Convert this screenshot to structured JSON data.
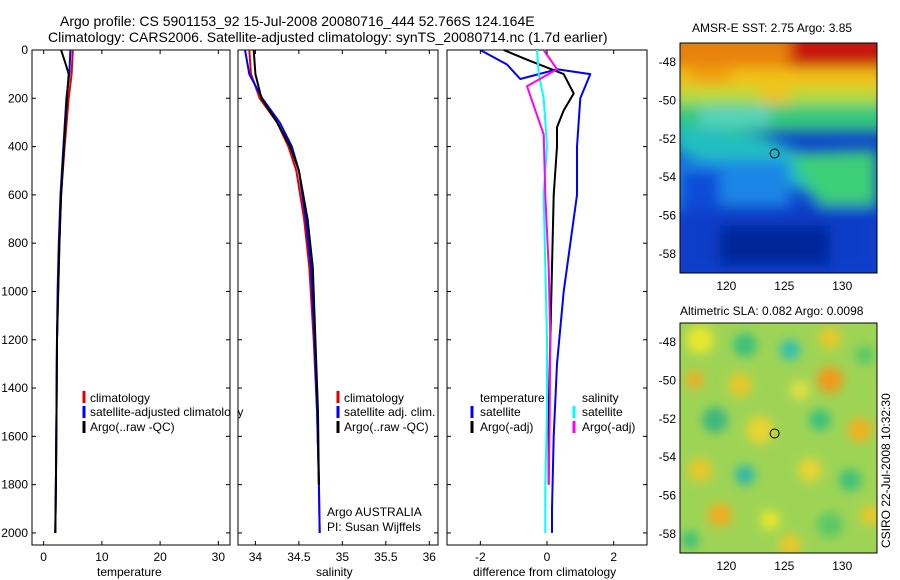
{
  "header": {
    "line1": "Argo profile: CS 5901153_92 15-Jul-2008 20080716_444 52.766S 124.164E",
    "line2": "Climatology: CARS2006. Satellite-adjusted climatology: synTS_20080714.nc (1.7d earlier)"
  },
  "side_label": "CSIRO 22-Jul-2008 10:32:30",
  "colors": {
    "red": "#e00000",
    "blue": "#0000ff",
    "black": "#000000",
    "cyan": "#00ffff",
    "magenta": "#ff00ff"
  },
  "chart_data": [
    {
      "type": "line",
      "id": "temperature",
      "xlabel": "temperature",
      "xlim": [
        -2,
        32
      ],
      "ylim": [
        0,
        2050
      ],
      "y_reversed": true,
      "xticks": [
        0,
        10,
        20,
        30
      ],
      "yticks": [
        0,
        200,
        400,
        600,
        800,
        1000,
        1200,
        1400,
        1600,
        1800,
        2000
      ],
      "legend": [
        "climatology",
        "satellite-adjusted climatology",
        "Argo(..raw -QC)"
      ],
      "series": [
        {
          "name": "climatology",
          "color": "red",
          "x": [
            5.0,
            4.8,
            4.3,
            3.6,
            3.0,
            2.7,
            2.5,
            2.3,
            2.2,
            2.1,
            2.0
          ],
          "y": [
            0,
            100,
            200,
            400,
            600,
            800,
            1000,
            1200,
            1500,
            1800,
            2000
          ]
        },
        {
          "name": "satellite-adjusted climatology",
          "color": "blue",
          "x": [
            4.6,
            4.4,
            3.9,
            3.4,
            2.9,
            2.6,
            2.4,
            2.3,
            2.2,
            2.1,
            2.0
          ],
          "y": [
            0,
            100,
            200,
            400,
            600,
            800,
            1000,
            1200,
            1500,
            1800,
            2000
          ]
        },
        {
          "name": "Argo(..raw -QC)",
          "color": "black",
          "x": [
            3.0,
            3.8,
            4.3,
            4.0,
            3.5,
            3.0,
            2.7,
            2.5,
            2.3,
            2.2,
            2.1,
            2.0
          ],
          "y": [
            0,
            60,
            100,
            200,
            400,
            600,
            800,
            1000,
            1200,
            1500,
            1800,
            2000
          ]
        }
      ]
    },
    {
      "type": "line",
      "id": "salinity",
      "xlabel": "salinity",
      "xlim": [
        33.8,
        36.1
      ],
      "ylim": [
        0,
        2050
      ],
      "y_reversed": true,
      "xticks": [
        34,
        34.5,
        35,
        35.5,
        36
      ],
      "xticklabels": [
        "34",
        "34.5",
        "35",
        "35.5",
        "36"
      ],
      "legend": [
        "climatology",
        "satellite adj. clim.",
        "Argo(..raw -QC)"
      ],
      "annotations": [
        "Argo AUSTRALIA",
        "PI: Susan Wijffels"
      ],
      "series": [
        {
          "name": "climatology",
          "color": "red",
          "x": [
            33.93,
            33.95,
            34.05,
            34.25,
            34.38,
            34.47,
            34.56,
            34.62,
            34.67,
            34.71,
            34.73,
            34.74
          ],
          "y": [
            0,
            100,
            200,
            300,
            400,
            500,
            700,
            900,
            1200,
            1500,
            1800,
            2000
          ]
        },
        {
          "name": "satellite adj. clim.",
          "color": "blue",
          "x": [
            33.88,
            33.93,
            34.08,
            34.28,
            34.42,
            34.5,
            34.58,
            34.64,
            34.68,
            34.71,
            34.73,
            34.74
          ],
          "y": [
            0,
            100,
            200,
            300,
            400,
            500,
            700,
            900,
            1200,
            1500,
            1800,
            2000
          ]
        },
        {
          "name": "Argo(..raw -QC)",
          "color": "black",
          "x": [
            33.98,
            34.0,
            34.07,
            34.25,
            34.4,
            34.5,
            34.6,
            34.66,
            34.69,
            34.72,
            34.73
          ],
          "y": [
            0,
            100,
            200,
            300,
            400,
            500,
            700,
            900,
            1200,
            1500,
            1800
          ]
        }
      ]
    },
    {
      "type": "line",
      "id": "difference",
      "xlabel": "difference from climatology",
      "xlim": [
        -3,
        3
      ],
      "ylim": [
        0,
        2050
      ],
      "y_reversed": true,
      "xticks": [
        -2,
        0,
        2
      ],
      "legend_left": [
        "temperature",
        "satellite",
        "Argo(-adj)"
      ],
      "legend_right": [
        "salinity",
        "satellite",
        "Argo(-adj)"
      ],
      "series": [
        {
          "name": "temperature satellite",
          "color": "blue",
          "x": [
            -2.0,
            -1.2,
            -0.8,
            0.3,
            1.3,
            1.0,
            0.9,
            0.9,
            0.5,
            0.3,
            0.2,
            0.15,
            0.15
          ],
          "y": [
            0,
            60,
            120,
            80,
            100,
            200,
            400,
            600,
            1000,
            1300,
            1600,
            1900,
            2000
          ]
        },
        {
          "name": "temperature Argo(-adj)",
          "color": "black",
          "x": [
            -1.3,
            -0.6,
            0.5,
            0.8,
            0.5,
            0.3,
            0.3,
            0.2,
            0.15,
            0.1,
            0.05,
            0.05
          ],
          "y": [
            0,
            40,
            100,
            180,
            250,
            320,
            400,
            600,
            900,
            1200,
            1500,
            1800
          ]
        },
        {
          "name": "salinity satellite",
          "color": "cyan",
          "x": [
            -0.3,
            -0.25,
            -0.1,
            0,
            -0.1,
            -0.05,
            0,
            0,
            -0.05,
            -0.05
          ],
          "y": [
            0,
            100,
            200,
            400,
            600,
            900,
            1200,
            1500,
            1800,
            2000
          ]
        },
        {
          "name": "salinity Argo(-adj)",
          "color": "magenta",
          "x": [
            -0.1,
            0.3,
            -0.6,
            -0.1,
            -0.05,
            0.05,
            0.1,
            0.08,
            0.05
          ],
          "y": [
            0,
            80,
            150,
            350,
            600,
            900,
            1200,
            1500,
            1800
          ]
        }
      ]
    },
    {
      "type": "heatmap",
      "id": "sst",
      "title": "AMSR-E SST: 2.75 Argo: 3.85",
      "xlim": [
        116,
        133
      ],
      "ylim": [
        -59,
        -47
      ],
      "xticks": [
        120,
        125,
        130
      ],
      "yticks": [
        -48,
        -50,
        -52,
        -54,
        -56,
        -58
      ],
      "marker": {
        "lon": 124.164,
        "lat": -52.766
      }
    },
    {
      "type": "heatmap",
      "id": "sla",
      "title": "Altimetric SLA: 0.082 Argo: 0.0098",
      "xlim": [
        116,
        133
      ],
      "ylim": [
        -59,
        -47
      ],
      "xticks": [
        120,
        125,
        130
      ],
      "yticks": [
        -48,
        -50,
        -52,
        -54,
        -56,
        -58
      ],
      "marker": {
        "lon": 124.164,
        "lat": -52.766
      }
    }
  ]
}
